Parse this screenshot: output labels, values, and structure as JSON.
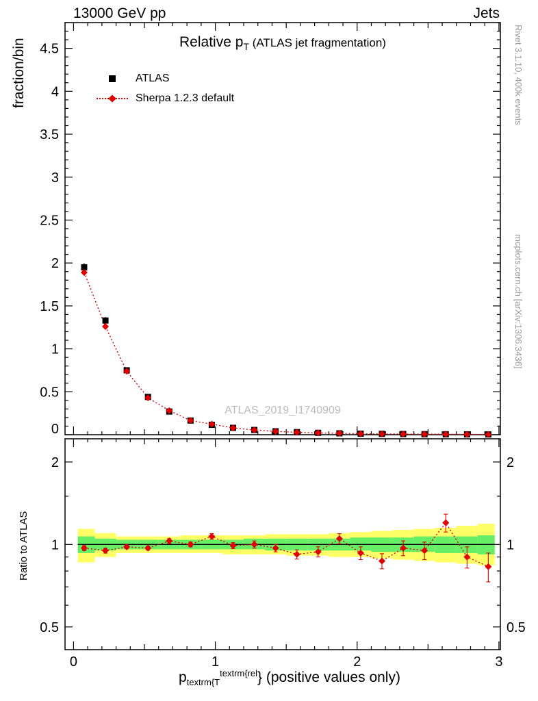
{
  "header": {
    "left": "13000 GeV pp",
    "right": "Jets"
  },
  "title": {
    "main": "Relative p",
    "sub": "T",
    "rest": " (ATLAS jet fragmentation)"
  },
  "axis_labels": {
    "y_main": "fraction/bin",
    "y_ratio": "Ratio to ATLAS",
    "x_base": "p",
    "x_sub": "textrm{T",
    "x_sup": "textrm{rel",
    "x_rest": "} (positive values only)"
  },
  "legend": {
    "entries": [
      {
        "label": "ATLAS",
        "marker": "black-square"
      },
      {
        "label": "Sherpa 1.2.3 default",
        "marker": "red-diamond-dotted-line"
      }
    ]
  },
  "watermark": "ATLAS_2019_I1740909",
  "side_notes": {
    "top": "Rivet 3.1.10,  400k events",
    "bottom": "mcplots.cern.ch [arXiv:1306.3436]"
  },
  "colors": {
    "red": "#e00000",
    "black": "#000000",
    "yellow": "#ffff66",
    "green": "#66ee66",
    "gray_text": "#999999",
    "watermark": "#bbbbbb"
  },
  "chart_data": [
    {
      "type": "scatter",
      "panel": "main",
      "title": "Relative p_T (ATLAS jet fragmentation)",
      "ylabel": "fraction/bin",
      "xlim": [
        -0.06,
        3.01
      ],
      "ylim": [
        0,
        4.8
      ],
      "yticks": {
        "values": [
          0,
          0.5,
          1,
          1.5,
          2,
          2.5,
          3,
          3.5,
          4,
          4.5
        ],
        "labels": [
          "0",
          "0.5",
          "1",
          "1.5",
          "2",
          "2.5",
          "3",
          "3.5",
          "4",
          "4.5"
        ]
      },
      "xticks": {
        "values": [
          0,
          1,
          2,
          3
        ],
        "labels": [
          "0",
          "1",
          "2",
          "3"
        ]
      },
      "x": [
        0.075,
        0.225,
        0.375,
        0.525,
        0.675,
        0.825,
        0.975,
        1.125,
        1.275,
        1.425,
        1.575,
        1.725,
        1.875,
        2.025,
        2.175,
        2.325,
        2.475,
        2.625,
        2.775,
        2.925
      ],
      "series": [
        {
          "name": "ATLAS",
          "marker": "square",
          "color": "#000000",
          "y": [
            1.95,
            1.33,
            0.75,
            0.44,
            0.27,
            0.165,
            0.115,
            0.08,
            0.055,
            0.04,
            0.03,
            0.022,
            0.016,
            0.012,
            0.01,
            0.008,
            0.006,
            0.005,
            0.004,
            0.003
          ],
          "yerr": [
            0.05,
            0.04,
            0.03,
            0.02,
            0.015,
            0.012,
            0.01,
            0.008,
            0.007,
            0.006,
            0.005,
            0.005,
            0.004,
            0.004,
            0.003,
            0.003,
            0.003,
            0.002,
            0.002,
            0.002
          ]
        },
        {
          "name": "Sherpa 1.2.3 default",
          "marker": "diamond",
          "color": "#e00000",
          "line": "dotted",
          "y": [
            1.89,
            1.26,
            0.74,
            0.43,
            0.28,
            0.165,
            0.123,
            0.079,
            0.055,
            0.039,
            0.028,
            0.021,
            0.017,
            0.011,
            0.009,
            0.008,
            0.006,
            0.006,
            0.0036,
            0.0025
          ],
          "yerr": [
            0.04,
            0.03,
            0.02,
            0.015,
            0.012,
            0.01,
            0.008,
            0.007,
            0.006,
            0.005,
            0.005,
            0.004,
            0.004,
            0.003,
            0.003,
            0.003,
            0.002,
            0.002,
            0.002,
            0.002
          ]
        }
      ]
    },
    {
      "type": "ratio",
      "panel": "ratio",
      "ylabel": "Ratio to ATLAS",
      "yscale": "log",
      "ylim": [
        0.413,
        2.43
      ],
      "yticks": {
        "values": [
          0.5,
          1,
          2
        ],
        "labels": [
          "0.5",
          "1",
          "2"
        ]
      },
      "minor_yticks": [
        0.6,
        0.7,
        0.8,
        0.9,
        1.5
      ],
      "reference_line": 1,
      "bands": {
        "edges": [
          0.03,
          0.15,
          0.3,
          0.45,
          0.6,
          0.75,
          0.9,
          1.05,
          1.2,
          1.35,
          1.5,
          1.65,
          1.8,
          1.95,
          2.1,
          2.25,
          2.4,
          2.55,
          2.7,
          2.85,
          2.97
        ],
        "yellow": [
          [
            0.86,
            1.14
          ],
          [
            0.9,
            1.1
          ],
          [
            0.93,
            1.07
          ],
          [
            0.93,
            1.07
          ],
          [
            0.93,
            1.07
          ],
          [
            0.93,
            1.08
          ],
          [
            0.93,
            1.08
          ],
          [
            0.92,
            1.08
          ],
          [
            0.92,
            1.08
          ],
          [
            0.92,
            1.09
          ],
          [
            0.91,
            1.09
          ],
          [
            0.91,
            1.09
          ],
          [
            0.9,
            1.1
          ],
          [
            0.9,
            1.11
          ],
          [
            0.89,
            1.12
          ],
          [
            0.88,
            1.13
          ],
          [
            0.87,
            1.14
          ],
          [
            0.86,
            1.15
          ],
          [
            0.85,
            1.17
          ],
          [
            0.84,
            1.19
          ]
        ],
        "green": [
          [
            0.93,
            1.07
          ],
          [
            0.95,
            1.05
          ],
          [
            0.96,
            1.04
          ],
          [
            0.96,
            1.04
          ],
          [
            0.96,
            1.04
          ],
          [
            0.96,
            1.04
          ],
          [
            0.96,
            1.04
          ],
          [
            0.96,
            1.04
          ],
          [
            0.96,
            1.05
          ],
          [
            0.95,
            1.05
          ],
          [
            0.95,
            1.05
          ],
          [
            0.95,
            1.05
          ],
          [
            0.95,
            1.05
          ],
          [
            0.95,
            1.06
          ],
          [
            0.94,
            1.06
          ],
          [
            0.94,
            1.06
          ],
          [
            0.94,
            1.07
          ],
          [
            0.93,
            1.07
          ],
          [
            0.93,
            1.07
          ],
          [
            0.92,
            1.08
          ]
        ]
      },
      "series": {
        "name": "Sherpa 1.2.3 default",
        "marker": "diamond",
        "color": "#e00000",
        "line": "dotted",
        "y": [
          0.97,
          0.95,
          0.98,
          0.97,
          1.03,
          1.0,
          1.07,
          0.99,
          1.0,
          0.97,
          0.92,
          0.94,
          1.05,
          0.93,
          0.87,
          0.97,
          0.95,
          1.2,
          0.9,
          0.83
        ],
        "yerr": [
          0.02,
          0.02,
          0.015,
          0.015,
          0.02,
          0.02,
          0.025,
          0.025,
          0.03,
          0.03,
          0.035,
          0.04,
          0.045,
          0.05,
          0.055,
          0.06,
          0.07,
          0.09,
          0.08,
          0.1
        ]
      }
    }
  ]
}
